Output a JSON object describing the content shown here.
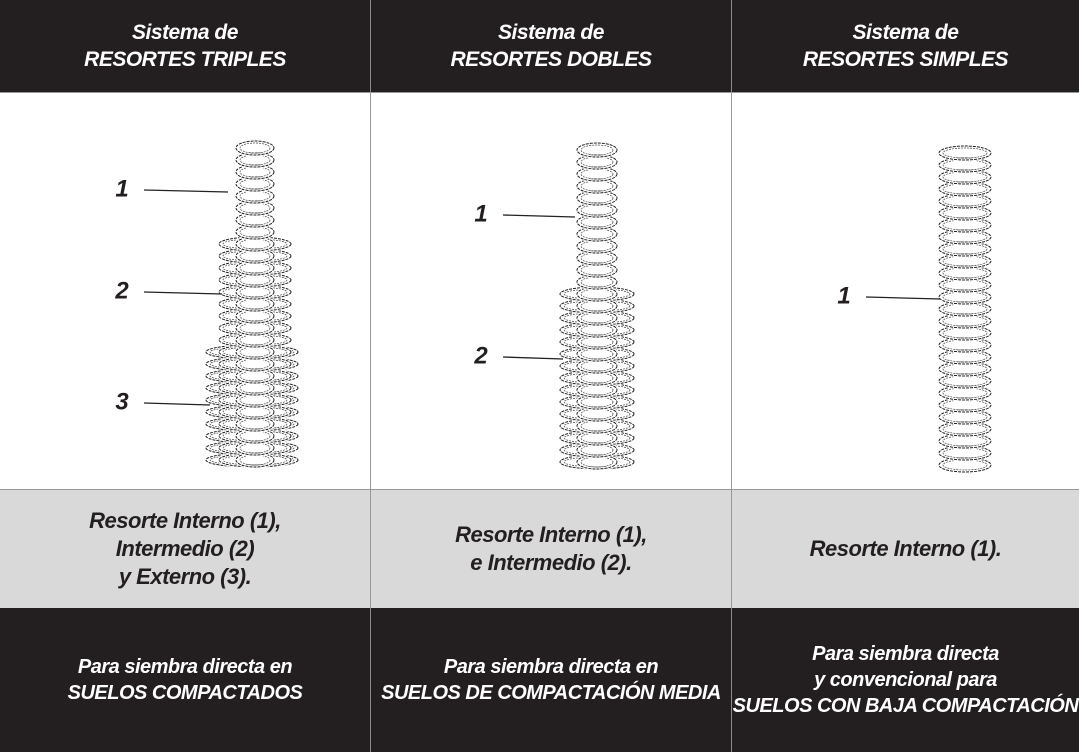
{
  "table": {
    "header": [
      [
        "Sistema de",
        "RESORTES TRIPLES"
      ],
      [
        "Sistema de",
        "RESORTES DOBLES"
      ],
      [
        "Sistema de",
        "RESORTES SIMPLES"
      ]
    ],
    "springs": [
      [
        "1",
        "2",
        "3"
      ],
      [
        "1",
        "2"
      ],
      [
        "1"
      ]
    ],
    "descriptions": [
      [
        "Resorte Interno (1),",
        "Intermedio (2)",
        "y Externo (3)."
      ],
      [
        "Resorte Interno (1),",
        "e Intermedio (2)."
      ],
      [
        "Resorte Interno (1)."
      ]
    ],
    "usage": [
      [
        "Para siembra directa en",
        "SUELOS COMPACTADOS"
      ],
      [
        "Para siembra directa en",
        "SUELOS DE COMPACTACIÓN MEDIA"
      ],
      [
        "Para siembra directa",
        "y convencional para",
        "SUELOS CON BAJA COMPACTACIÓN"
      ]
    ]
  }
}
